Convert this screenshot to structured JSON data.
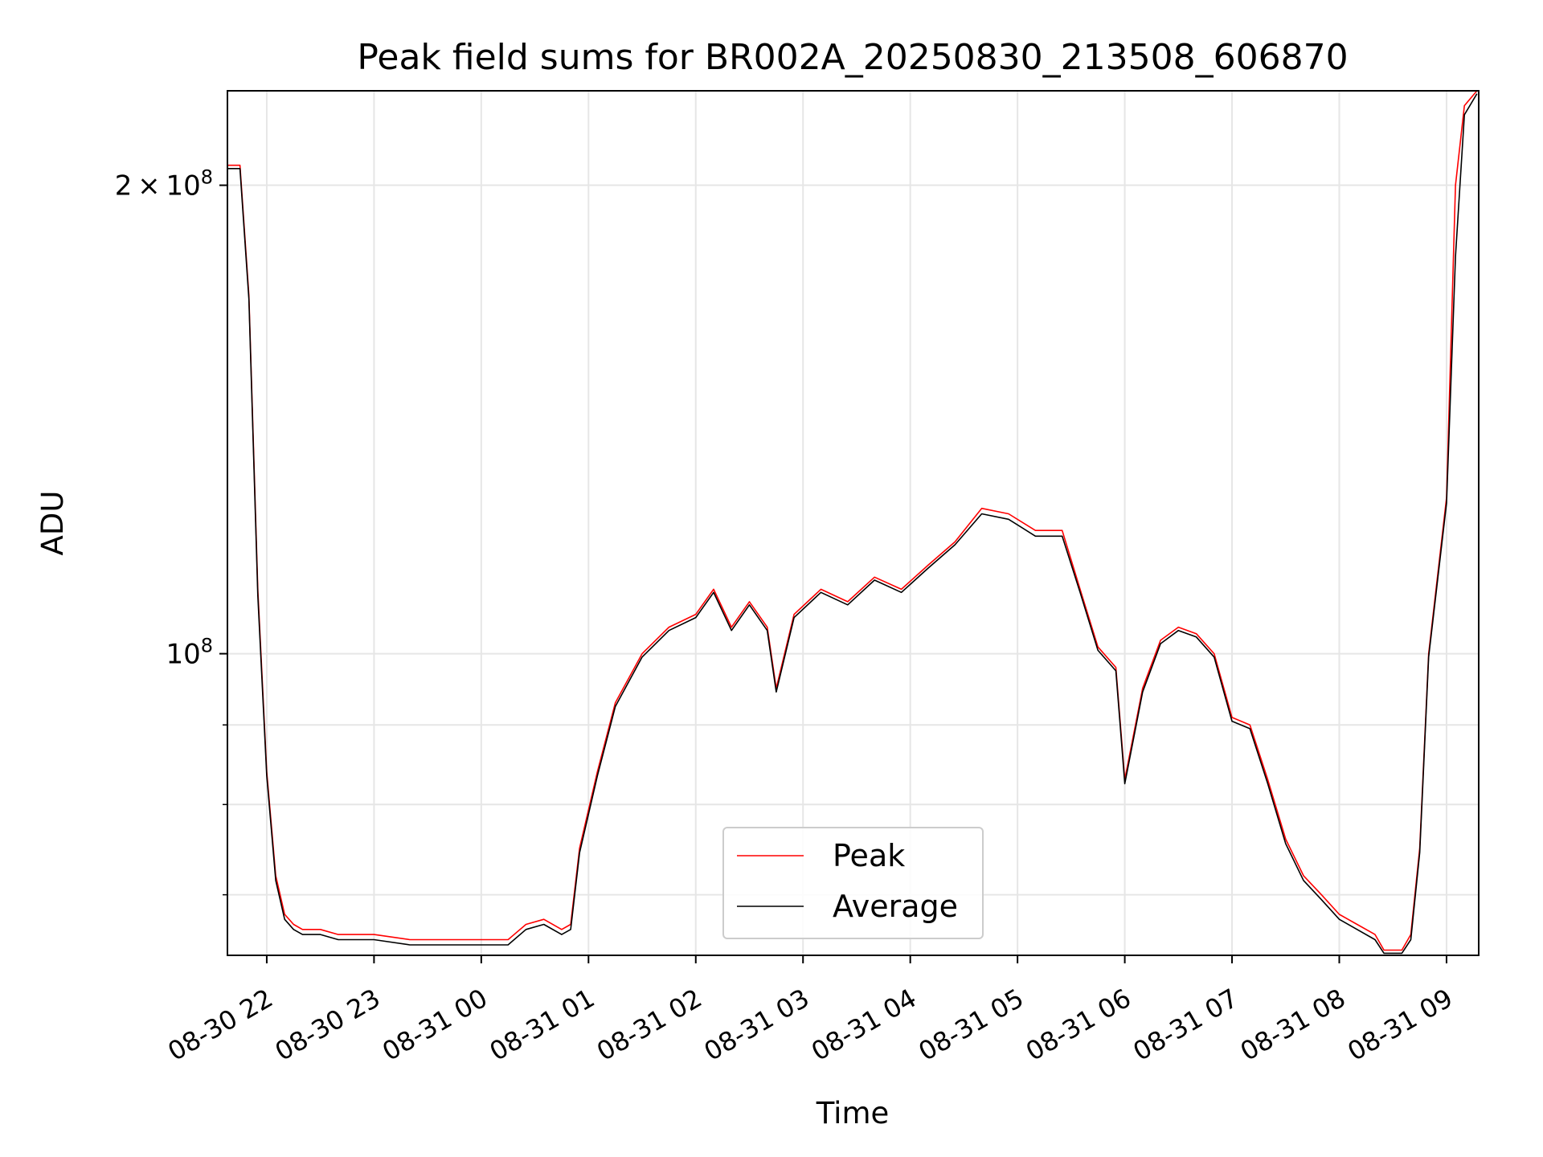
{
  "chart_data": {
    "type": "line",
    "title": "Peak field sums for BR002A_20250830_213508_606870",
    "xlabel": "Time",
    "ylabel": "ADU",
    "yscale": "log",
    "ylim": [
      64000000,
      230000000
    ],
    "grid": true,
    "legend_position": "lower-center",
    "x_tick_labels": [
      "08-30 22",
      "08-30 23",
      "08-31 00",
      "08-31 01",
      "08-31 02",
      "08-31 03",
      "08-31 04",
      "08-31 05",
      "08-31 06",
      "08-31 07",
      "08-31 08",
      "08-31 09"
    ],
    "y_ticks": [
      {
        "value": 100000000,
        "mantissa": "",
        "exponent": "8"
      },
      {
        "value": 200000000,
        "mantissa": "2",
        "exponent": "8"
      }
    ],
    "y_minor_ticks": [
      70000000,
      80000000,
      90000000
    ],
    "x_ticks_iso": [
      "2025-08-30T22:00",
      "2025-08-30T23:00",
      "2025-08-31T00:00",
      "2025-08-31T01:00",
      "2025-08-31T02:00",
      "2025-08-31T03:00",
      "2025-08-31T04:00",
      "2025-08-31T05:00",
      "2025-08-31T06:00",
      "2025-08-31T07:00",
      "2025-08-31T08:00",
      "2025-08-31T09:00"
    ],
    "xlim": [
      "2025-08-30T21:38",
      "2025-08-31T09:18"
    ],
    "series": [
      {
        "name": "Peak",
        "color": "#ff0000",
        "x": [
          "2025-08-30T21:38",
          "2025-08-30T21:45",
          "2025-08-30T21:50",
          "2025-08-30T21:55",
          "2025-08-30T22:00",
          "2025-08-30T22:05",
          "2025-08-30T22:10",
          "2025-08-30T22:15",
          "2025-08-30T22:20",
          "2025-08-30T22:30",
          "2025-08-30T22:40",
          "2025-08-30T23:00",
          "2025-08-30T23:20",
          "2025-08-30T23:40",
          "2025-08-31T00:00",
          "2025-08-31T00:15",
          "2025-08-31T00:25",
          "2025-08-31T00:35",
          "2025-08-31T00:45",
          "2025-08-31T00:50",
          "2025-08-31T00:55",
          "2025-08-31T01:05",
          "2025-08-31T01:15",
          "2025-08-31T01:30",
          "2025-08-31T01:45",
          "2025-08-31T02:00",
          "2025-08-31T02:10",
          "2025-08-31T02:20",
          "2025-08-31T02:30",
          "2025-08-31T02:40",
          "2025-08-31T02:45",
          "2025-08-31T02:55",
          "2025-08-31T03:10",
          "2025-08-31T03:25",
          "2025-08-31T03:40",
          "2025-08-31T03:55",
          "2025-08-31T04:10",
          "2025-08-31T04:25",
          "2025-08-31T04:40",
          "2025-08-31T04:55",
          "2025-08-31T05:10",
          "2025-08-31T05:25",
          "2025-08-31T05:35",
          "2025-08-31T05:45",
          "2025-08-31T05:55",
          "2025-08-31T06:00",
          "2025-08-31T06:10",
          "2025-08-31T06:20",
          "2025-08-31T06:30",
          "2025-08-31T06:40",
          "2025-08-31T06:50",
          "2025-08-31T07:00",
          "2025-08-31T07:10",
          "2025-08-31T07:20",
          "2025-08-31T07:30",
          "2025-08-31T07:40",
          "2025-08-31T07:50",
          "2025-08-31T08:00",
          "2025-08-31T08:10",
          "2025-08-31T08:20",
          "2025-08-31T08:25",
          "2025-08-31T08:35",
          "2025-08-31T08:40",
          "2025-08-31T08:45",
          "2025-08-31T08:50",
          "2025-08-31T09:00",
          "2025-08-31T09:05",
          "2025-08-31T09:10",
          "2025-08-31T09:17"
        ],
        "values": [
          206000000,
          206000000,
          170000000,
          110000000,
          84000000,
          72000000,
          68000000,
          67000000,
          66500000,
          66500000,
          66000000,
          66000000,
          65500000,
          65500000,
          65500000,
          65500000,
          67000000,
          67500000,
          66500000,
          67000000,
          75000000,
          84000000,
          93000000,
          100000000,
          104000000,
          106000000,
          110000000,
          104000000,
          108000000,
          104000000,
          95000000,
          106000000,
          110000000,
          108000000,
          112000000,
          110000000,
          114000000,
          118000000,
          124000000,
          123000000,
          120000000,
          120000000,
          110000000,
          101000000,
          98000000,
          83000000,
          95000000,
          102000000,
          104000000,
          103000000,
          100000000,
          91000000,
          90000000,
          83000000,
          76000000,
          72000000,
          70000000,
          68000000,
          67000000,
          66000000,
          64500000,
          64500000,
          66000000,
          75000000,
          100000000,
          126000000,
          200000000,
          225000000,
          230000000
        ]
      },
      {
        "name": "Average",
        "color": "#000000",
        "x": [
          "2025-08-30T21:38",
          "2025-08-30T21:45",
          "2025-08-30T21:50",
          "2025-08-30T21:55",
          "2025-08-30T22:00",
          "2025-08-30T22:05",
          "2025-08-30T22:10",
          "2025-08-30T22:15",
          "2025-08-30T22:20",
          "2025-08-30T22:30",
          "2025-08-30T22:40",
          "2025-08-30T23:00",
          "2025-08-30T23:20",
          "2025-08-30T23:40",
          "2025-08-31T00:00",
          "2025-08-31T00:15",
          "2025-08-31T00:25",
          "2025-08-31T00:35",
          "2025-08-31T00:45",
          "2025-08-31T00:50",
          "2025-08-31T00:55",
          "2025-08-31T01:05",
          "2025-08-31T01:15",
          "2025-08-31T01:30",
          "2025-08-31T01:45",
          "2025-08-31T02:00",
          "2025-08-31T02:10",
          "2025-08-31T02:20",
          "2025-08-31T02:30",
          "2025-08-31T02:40",
          "2025-08-31T02:45",
          "2025-08-31T02:55",
          "2025-08-31T03:10",
          "2025-08-31T03:25",
          "2025-08-31T03:40",
          "2025-08-31T03:55",
          "2025-08-31T04:10",
          "2025-08-31T04:25",
          "2025-08-31T04:40",
          "2025-08-31T04:55",
          "2025-08-31T05:10",
          "2025-08-31T05:25",
          "2025-08-31T05:35",
          "2025-08-31T05:45",
          "2025-08-31T05:55",
          "2025-08-31T06:00",
          "2025-08-31T06:10",
          "2025-08-31T06:20",
          "2025-08-31T06:30",
          "2025-08-31T06:40",
          "2025-08-31T06:50",
          "2025-08-31T07:00",
          "2025-08-31T07:10",
          "2025-08-31T07:20",
          "2025-08-31T07:30",
          "2025-08-31T07:40",
          "2025-08-31T07:50",
          "2025-08-31T08:00",
          "2025-08-31T08:10",
          "2025-08-31T08:20",
          "2025-08-31T08:25",
          "2025-08-31T08:35",
          "2025-08-31T08:40",
          "2025-08-31T08:45",
          "2025-08-31T08:50",
          "2025-08-31T09:00",
          "2025-08-31T09:05",
          "2025-08-31T09:10",
          "2025-08-31T09:17"
        ],
        "values": [
          205000000,
          205000000,
          169000000,
          109000000,
          83500000,
          71500000,
          67500000,
          66500000,
          66000000,
          66000000,
          65500000,
          65500000,
          65000000,
          65000000,
          65000000,
          65000000,
          66500000,
          67000000,
          66000000,
          66500000,
          74500000,
          83500000,
          92500000,
          99500000,
          103500000,
          105500000,
          109500000,
          103500000,
          107500000,
          103500000,
          94500000,
          105500000,
          109500000,
          107500000,
          111500000,
          109500000,
          113500000,
          117500000,
          123000000,
          122000000,
          119000000,
          119000000,
          109500000,
          100500000,
          97500000,
          82500000,
          94500000,
          101500000,
          103500000,
          102500000,
          99500000,
          90500000,
          89500000,
          82500000,
          75500000,
          71500000,
          69500000,
          67500000,
          66500000,
          65500000,
          64200000,
          64200000,
          65500000,
          74500000,
          99500000,
          125000000,
          180000000,
          222000000,
          229000000
        ]
      }
    ]
  }
}
